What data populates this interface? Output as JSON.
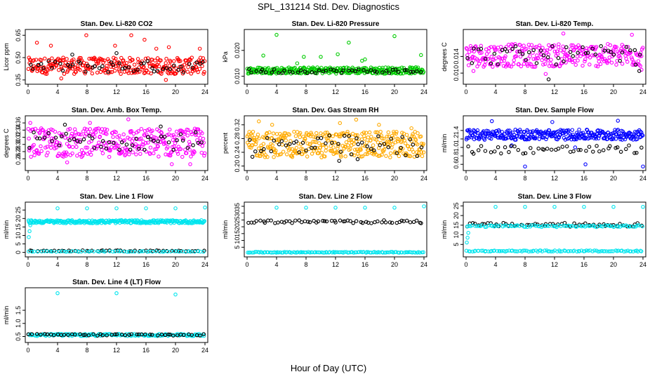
{
  "title": "SPL_131214  Std. Dev. Diagnostics",
  "xlabel": "Hour of Day (UTC)",
  "chart_data": [
    {
      "type": "scatter",
      "title": "Stan. Dev. Li-820 CO2",
      "ylabel": "Licor ppm",
      "xlim": [
        0,
        24
      ],
      "xticks": [
        0,
        4,
        8,
        12,
        16,
        20,
        24
      ],
      "ylim": [
        0.34,
        0.67
      ],
      "yticks": [
        "0.35",
        "0.50",
        "0.65"
      ],
      "series": [
        {
          "color": "#ff0000",
          "band": [
            0.39,
            0.5
          ],
          "count": 300,
          "outliers": [
            [
              1.2,
              0.6
            ],
            [
              3.1,
              0.58
            ],
            [
              7.9,
              0.65
            ],
            [
              11.8,
              0.58
            ],
            [
              14.0,
              0.65
            ],
            [
              15.8,
              0.62
            ],
            [
              17.4,
              0.56
            ],
            [
              19.1,
              0.57
            ],
            [
              23.3,
              0.56
            ],
            [
              4.5,
              0.36
            ],
            [
              18.7,
              0.35
            ]
          ]
        },
        {
          "color": "#000000",
          "band": [
            0.4,
            0.48
          ],
          "count": 48,
          "outliers": [
            [
              6.0,
              0.52
            ],
            [
              12.0,
              0.53
            ]
          ]
        }
      ]
    },
    {
      "type": "scatter",
      "title": "Stan. Dev. Li-820 Pressure",
      "ylabel": "kPa",
      "xlim": [
        0,
        24
      ],
      "xticks": [
        0,
        4,
        8,
        12,
        16,
        20,
        24
      ],
      "ylim": [
        0.008,
        0.027
      ],
      "yticks": [
        "0.010",
        "0.020"
      ],
      "series": [
        {
          "color": "#00cc00",
          "band": [
            0.011,
            0.0135
          ],
          "count": 320,
          "outliers": [
            [
              4.0,
              0.026
            ],
            [
              2.2,
              0.018
            ],
            [
              7.7,
              0.0175
            ],
            [
              10.0,
              0.0175
            ],
            [
              12.3,
              0.0185
            ],
            [
              13.8,
              0.023
            ],
            [
              15.6,
              0.016
            ],
            [
              16.0,
              0.0165
            ],
            [
              20.0,
              0.0255
            ],
            [
              23.6,
              0.0182
            ],
            [
              6.8,
              0.015
            ]
          ]
        },
        {
          "color": "#000000",
          "band": [
            0.0112,
            0.0128
          ],
          "count": 48,
          "outliers": []
        }
      ]
    },
    {
      "type": "scatter",
      "title": "Stan. Dev. Li-820 Temp.",
      "ylabel": "degrees C",
      "xlim": [
        0,
        24
      ],
      "xticks": [
        0,
        4,
        8,
        12,
        16,
        20,
        24
      ],
      "ylim": [
        0.008,
        0.0198
      ],
      "yticks": [
        "0.010",
        "0.014"
      ],
      "series": [
        {
          "color": "#ff00ff",
          "band": [
            0.0115,
            0.017
          ],
          "count": 300,
          "outliers": [
            [
              13.2,
              0.0195
            ],
            [
              22.5,
              0.0192
            ],
            [
              1.0,
              0.0105
            ],
            [
              10.8,
              0.0098
            ],
            [
              23.8,
              0.0108
            ]
          ]
        },
        {
          "color": "#000000",
          "band": [
            0.012,
            0.0165
          ],
          "count": 48,
          "outliers": [
            [
              11.2,
              0.0085
            ],
            [
              23.5,
              0.0105
            ]
          ]
        }
      ]
    },
    {
      "type": "scatter",
      "title": "Stan. Dev. Amb. Box Temp.",
      "ylabel": "degrees C",
      "xlim": [
        0,
        24
      ],
      "xticks": [
        0,
        4,
        8,
        12,
        16,
        20,
        24
      ],
      "ylim": [
        0.235,
        0.372
      ],
      "yticks": [
        "0.26",
        "0.28",
        "0.30",
        "0.32",
        "0.34",
        "0.36"
      ],
      "series": [
        {
          "color": "#ff00ff",
          "band": [
            0.265,
            0.345
          ],
          "count": 330,
          "outliers": [
            [
              0.3,
              0.36
            ],
            [
              8.4,
              0.36
            ],
            [
              13.6,
              0.37
            ],
            [
              19.5,
              0.245
            ],
            [
              22.0,
              0.245
            ],
            [
              5.3,
              0.25
            ]
          ]
        },
        {
          "color": "#000000",
          "band": [
            0.285,
            0.335
          ],
          "count": 48,
          "outliers": [
            [
              5.0,
              0.355
            ],
            [
              18.0,
              0.35
            ]
          ]
        }
      ]
    },
    {
      "type": "scatter",
      "title": "Stan. Dev. Gas Stream RH",
      "ylabel": "percent",
      "xlim": [
        0,
        24
      ],
      "xticks": [
        0,
        4,
        8,
        12,
        16,
        20,
        24
      ],
      "ylim": [
        0.195,
        0.338
      ],
      "yticks": [
        "0.20",
        "0.24",
        "0.28",
        "0.32"
      ],
      "series": [
        {
          "color": "#ffaa00",
          "band": [
            0.225,
            0.3
          ],
          "count": 360,
          "outliers": [
            [
              1.6,
              0.33
            ],
            [
              3.4,
              0.32
            ],
            [
              12.6,
              0.325
            ],
            [
              14.8,
              0.335
            ],
            [
              17.9,
              0.32
            ],
            [
              22.3,
              0.31
            ]
          ]
        },
        {
          "color": "#000000",
          "band": [
            0.225,
            0.29
          ],
          "count": 48,
          "outliers": [
            [
              12.5,
              0.215
            ],
            [
              15.0,
              0.22
            ]
          ]
        }
      ]
    },
    {
      "type": "scatter",
      "title": "Stan. Dev. Sample Flow",
      "ylabel": "ml/min",
      "xlim": [
        0,
        24
      ],
      "xticks": [
        0,
        4,
        8,
        12,
        16,
        20,
        24
      ],
      "ylim": [
        0.52,
        1.68
      ],
      "yticks": [
        "0.6",
        "0.8",
        "1.0",
        "1.2",
        "1.4"
      ],
      "series": [
        {
          "color": "#0000ff",
          "band": [
            1.18,
            1.42
          ],
          "count": 320,
          "outliers": [
            [
              8.0,
              0.55
            ],
            [
              16.2,
              0.6
            ],
            [
              24.0,
              0.55
            ],
            [
              3.5,
              1.62
            ],
            [
              11.7,
              1.6
            ],
            [
              20.6,
              1.63
            ],
            [
              14.8,
              1.0
            ],
            [
              6.2,
              1.05
            ]
          ]
        },
        {
          "color": "#000000",
          "band": [
            0.85,
            1.05
          ],
          "count": 48,
          "outliers": []
        }
      ]
    },
    {
      "type": "scatter",
      "title": "Stan. Dev. Line 1 Flow",
      "ylabel": "ml/min",
      "xlim": [
        0,
        24
      ],
      "xticks": [
        0,
        4,
        8,
        12,
        16,
        20,
        24
      ],
      "ylim": [
        -1,
        28
      ],
      "yticks": [
        "0",
        "5",
        "10",
        "15",
        "20",
        "25"
      ],
      "series": [
        {
          "color": "#00e5ee",
          "band": [
            17.2,
            19.0
          ],
          "count": 280,
          "outliers": [
            [
              4.0,
              26.0
            ],
            [
              8.0,
              26.0
            ],
            [
              12.0,
              26.0
            ],
            [
              16.0,
              26.0
            ],
            [
              20.0,
              26.0
            ],
            [
              24.0,
              26.5
            ],
            [
              0.1,
              9.0
            ],
            [
              0.2,
              12.5
            ],
            [
              0.3,
              16.0
            ]
          ]
        },
        {
          "color": "#000000",
          "band": [
            0.6,
            1.2
          ],
          "count": 50,
          "outliers": []
        },
        {
          "color": "#00e5ee",
          "band": [
            0.3,
            0.7
          ],
          "count": 60,
          "outliers": []
        }
      ]
    },
    {
      "type": "scatter",
      "title": "Stan. Dev. Line 2 Flow",
      "ylabel": "ml/min",
      "xlim": [
        0,
        24
      ],
      "xticks": [
        0,
        4,
        8,
        12,
        16,
        20,
        24
      ],
      "ylim": [
        0,
        36
      ],
      "yticks": [
        "5",
        "10",
        "15",
        "20",
        "25",
        "30",
        "35"
      ],
      "series": [
        {
          "color": "#000000",
          "band": [
            22.6,
            24.8
          ],
          "count": 60,
          "outliers": []
        },
        {
          "color": "#00e5ee",
          "band": [
            1.0,
            1.6
          ],
          "count": 120,
          "outliers": [
            [
              4.0,
              34.0
            ],
            [
              8.0,
              34.0
            ],
            [
              12.0,
              34.0
            ],
            [
              16.0,
              34.0
            ],
            [
              20.0,
              34.0
            ],
            [
              24.0,
              35.0
            ]
          ]
        }
      ]
    },
    {
      "type": "scatter",
      "title": "Stan. Dev. Line 3 Flow",
      "ylabel": "ml/min",
      "xlim": [
        0,
        24
      ],
      "xticks": [
        0,
        4,
        8,
        12,
        16,
        20,
        24
      ],
      "ylim": [
        0,
        25.5
      ],
      "yticks": [
        "5",
        "10",
        "15",
        "20",
        "25"
      ],
      "series": [
        {
          "color": "#000000",
          "band": [
            14.2,
            16.2
          ],
          "count": 60,
          "outliers": []
        },
        {
          "color": "#00e5ee",
          "band": [
            14.0,
            15.0
          ],
          "count": 90,
          "outliers": [
            [
              0.1,
              6.0
            ],
            [
              0.2,
              8.5
            ],
            [
              0.3,
              11.0
            ],
            [
              4.0,
              24.5
            ],
            [
              8.0,
              24.5
            ],
            [
              12.0,
              24.5
            ],
            [
              16.0,
              24.5
            ],
            [
              20.0,
              24.5
            ],
            [
              24.0,
              24.5
            ]
          ]
        },
        {
          "color": "#00e5ee",
          "band": [
            1.3,
            1.9
          ],
          "count": 100,
          "outliers": []
        }
      ]
    },
    {
      "type": "scatter",
      "title": "Stan. Dev. Line 4 (LT) Flow",
      "ylabel": "ml/min",
      "xlim": [
        0,
        24
      ],
      "xticks": [
        0,
        4,
        8,
        12,
        16,
        20,
        24
      ],
      "ylim": [
        0.38,
        2.25
      ],
      "yticks": [
        "0.5",
        "1.0",
        "1.5"
      ],
      "series": [
        {
          "color": "#00e5ee",
          "band": [
            0.52,
            0.6
          ],
          "count": 150,
          "outliers": [
            [
              4.0,
              2.15
            ],
            [
              12.0,
              2.15
            ],
            [
              20.0,
              2.1
            ]
          ]
        },
        {
          "color": "#000000",
          "band": [
            0.53,
            0.6
          ],
          "count": 50,
          "outliers": []
        }
      ]
    }
  ]
}
